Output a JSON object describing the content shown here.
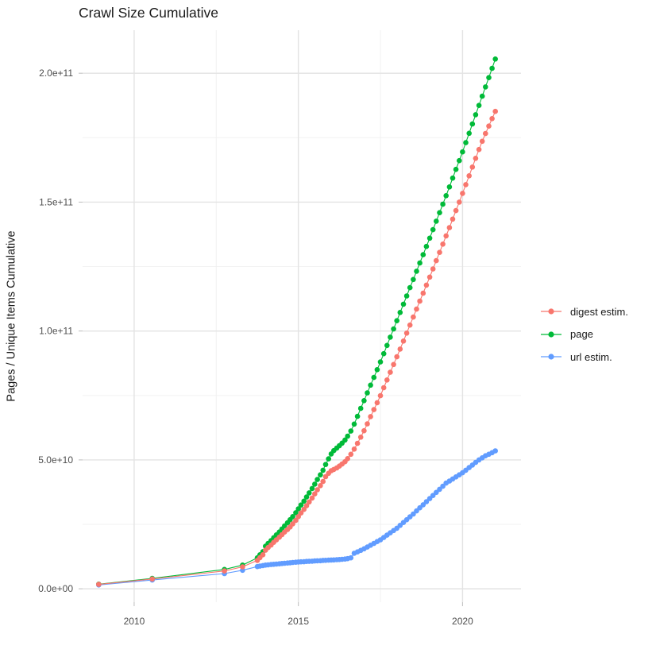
{
  "title": "Crawl Size Cumulative",
  "legend": {
    "items": [
      {
        "label": "digest estim.",
        "color": "#F8766D"
      },
      {
        "label": "page",
        "color": "#00BA38"
      },
      {
        "label": "url estim.",
        "color": "#619CFF"
      }
    ]
  },
  "colors": {
    "background": "#FFFFFF",
    "grid_major": "#E3E3E3",
    "grid_minor": "#F0F0F0",
    "axis_tick": "#C2C2C2",
    "tick_label": "#4D4D4D",
    "text": "#1A1A1A",
    "digest": "#F8766D",
    "page": "#00BA38",
    "url": "#619CFF"
  },
  "chart_data": {
    "type": "scatter",
    "title": "Crawl Size Cumulative",
    "xlabel": "",
    "ylabel": "Pages / Unique Items Cumulative",
    "legend_position": "right",
    "grid": true,
    "values_unit": "billions (1e9 items)",
    "xlim": [
      2008.43,
      2021.78
    ],
    "ylim": [
      -5.2,
      216.7
    ],
    "x_ticks": [
      2010,
      2015,
      2020
    ],
    "x_tick_labels": [
      "2010",
      "2015",
      "2020"
    ],
    "x_minor_ticks": [
      2012.5,
      2017.5
    ],
    "y_ticks": [
      0,
      50,
      100,
      150,
      200
    ],
    "y_tick_labels": [
      "0.0e+00",
      "5.0e+10",
      "1.0e+11",
      "1.5e+11",
      "2.0e+11"
    ],
    "y_minor_ticks": [
      25,
      75,
      125,
      175
    ],
    "x": [
      2008.92,
      2010.55,
      2012.75,
      2013.3,
      2013.75,
      2013.83,
      2013.92,
      2014.0,
      2014.08,
      2014.17,
      2014.25,
      2014.33,
      2014.42,
      2014.5,
      2014.58,
      2014.67,
      2014.75,
      2014.83,
      2014.92,
      2015.0,
      2015.08,
      2015.17,
      2015.25,
      2015.33,
      2015.42,
      2015.5,
      2015.58,
      2015.67,
      2015.75,
      2015.83,
      2015.92,
      2016.0,
      2016.08,
      2016.17,
      2016.25,
      2016.33,
      2016.42,
      2016.5,
      2016.6,
      2016.7,
      2016.8,
      2016.9,
      2017.0,
      2017.1,
      2017.2,
      2017.3,
      2017.4,
      2017.5,
      2017.6,
      2017.7,
      2017.8,
      2017.9,
      2018.0,
      2018.1,
      2018.2,
      2018.3,
      2018.4,
      2018.5,
      2018.6,
      2018.7,
      2018.8,
      2018.9,
      2019.0,
      2019.1,
      2019.2,
      2019.3,
      2019.4,
      2019.5,
      2019.6,
      2019.7,
      2019.8,
      2019.9,
      2020.0,
      2020.1,
      2020.2,
      2020.3,
      2020.4,
      2020.5,
      2020.6,
      2020.7,
      2020.8,
      2020.9,
      2021.0
    ],
    "series": [
      {
        "name": "digest estim.",
        "color": "#F8766D",
        "values": [
          1.7,
          3.8,
          6.9,
          8.5,
          11.0,
          12.1,
          13.2,
          15.0,
          16.0,
          17.0,
          18.0,
          19.0,
          20.0,
          21.0,
          22.0,
          23.0,
          24.0,
          25.2,
          26.5,
          28.0,
          29.4,
          30.8,
          32.2,
          33.7,
          35.2,
          36.8,
          38.4,
          40.0,
          41.6,
          43.5,
          44.8,
          45.8,
          46.3,
          46.9,
          47.6,
          48.4,
          49.3,
          50.5,
          52.2,
          54.2,
          56.4,
          58.8,
          61.3,
          64.0,
          66.8,
          69.5,
          72.2,
          74.9,
          78.0,
          81.0,
          84.0,
          87.0,
          90.0,
          93.0,
          96.1,
          99.2,
          102.3,
          105.4,
          108.5,
          111.6,
          114.7,
          117.8,
          120.9,
          124.1,
          127.3,
          130.5,
          133.7,
          136.9,
          140.1,
          143.4,
          146.7,
          150.0,
          153.4,
          156.8,
          160.2,
          163.6,
          167.0,
          170.4,
          173.6,
          176.6,
          179.5,
          182.4,
          185.2
        ]
      },
      {
        "name": "page",
        "color": "#00BA38",
        "values": [
          1.8,
          4.0,
          7.5,
          9.2,
          12.0,
          13.2,
          14.4,
          16.5,
          17.6,
          18.7,
          19.8,
          20.9,
          22.0,
          23.2,
          24.4,
          25.6,
          26.8,
          28.0,
          29.5,
          31.0,
          32.5,
          34.0,
          35.6,
          37.2,
          38.9,
          40.6,
          42.4,
          44.2,
          46.0,
          48.2,
          50.4,
          52.3,
          53.6,
          54.6,
          55.5,
          56.5,
          57.7,
          59.2,
          61.2,
          63.9,
          66.9,
          70.0,
          73.0,
          76.0,
          79.0,
          82.0,
          85.0,
          88.0,
          91.2,
          94.4,
          97.6,
          100.8,
          104.0,
          107.2,
          110.4,
          113.6,
          116.8,
          120.0,
          123.2,
          126.4,
          129.6,
          132.8,
          136.0,
          139.3,
          142.6,
          145.9,
          149.2,
          152.5,
          155.9,
          159.3,
          162.7,
          166.1,
          169.5,
          173.1,
          176.7,
          180.3,
          183.9,
          187.5,
          191.1,
          194.7,
          198.3,
          201.9,
          205.5
        ]
      },
      {
        "name": "url estim.",
        "color": "#619CFF",
        "values": [
          1.5,
          3.4,
          5.9,
          7.2,
          8.6,
          8.8,
          9.0,
          9.2,
          9.3,
          9.4,
          9.5,
          9.6,
          9.7,
          9.8,
          9.9,
          10.0,
          10.1,
          10.2,
          10.3,
          10.4,
          10.45,
          10.5,
          10.6,
          10.65,
          10.7,
          10.8,
          10.85,
          10.9,
          11.0,
          11.05,
          11.1,
          11.15,
          11.2,
          11.3,
          11.35,
          11.45,
          11.55,
          11.7,
          12.0,
          13.8,
          14.3,
          14.9,
          15.5,
          16.2,
          16.9,
          17.6,
          18.3,
          19.0,
          19.9,
          20.8,
          21.7,
          22.6,
          23.5,
          24.6,
          25.7,
          26.8,
          27.9,
          29.0,
          30.2,
          31.4,
          32.6,
          33.8,
          35.0,
          36.2,
          37.4,
          38.6,
          39.8,
          41.0,
          41.8,
          42.6,
          43.4,
          44.2,
          45.0,
          46.0,
          47.0,
          48.0,
          49.0,
          50.0,
          50.8,
          51.6,
          52.2,
          52.8,
          53.5
        ]
      }
    ]
  }
}
